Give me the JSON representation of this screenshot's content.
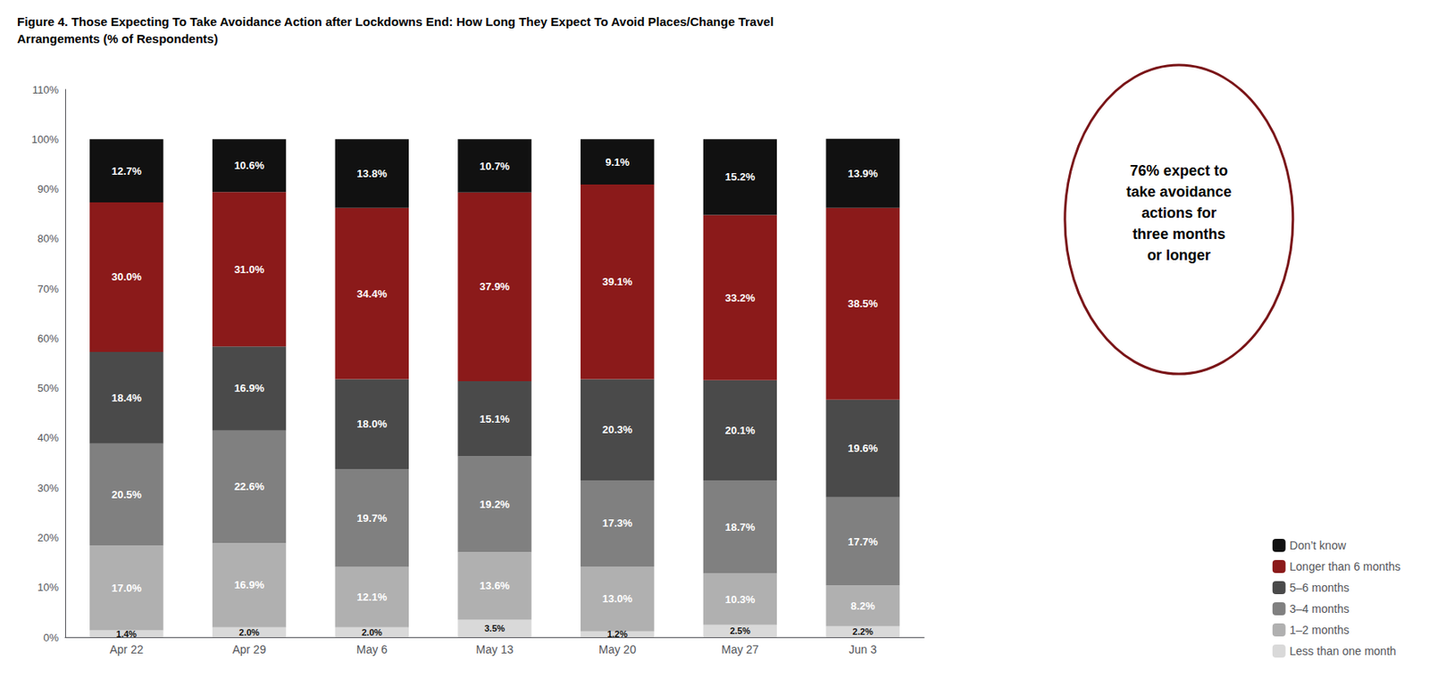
{
  "chart_data": {
    "type": "bar",
    "stacked": true,
    "title": "Figure 4. Those Expecting To Take Avoidance Action after Lockdowns End: How Long They Expect To Avoid Places/Change Travel",
    "subtitle": "Arrangements (% of Respondents)",
    "categories": [
      "Apr 22",
      "Apr 29",
      "May 6",
      "May 13",
      "May 20",
      "May 27",
      "Jun 3"
    ],
    "series": [
      {
        "name": "Less than one month",
        "color": "#d9d9d9",
        "values": [
          1.4,
          2.0,
          2.0,
          3.5,
          1.2,
          2.5,
          2.2
        ],
        "value_labels": [
          "1.4%",
          "2.0%",
          "2.0%",
          "3.5%",
          "1.2%",
          "2.5%",
          "2.2%"
        ]
      },
      {
        "name": "1–2 months",
        "color": "#b0b0b0",
        "values": [
          17.0,
          16.9,
          12.1,
          13.6,
          13.0,
          10.3,
          8.2
        ],
        "value_labels": [
          "17.0%",
          "16.9%",
          "12.1%",
          "13.6%",
          "13.0%",
          "10.3%",
          "8.2%"
        ]
      },
      {
        "name": "3–4 months",
        "color": "#808080",
        "values": [
          20.5,
          22.6,
          19.7,
          19.2,
          17.3,
          18.7,
          17.7
        ],
        "value_labels": [
          "20.5%",
          "22.6%",
          "19.7%",
          "19.2%",
          "17.3%",
          "18.7%",
          "17.7%"
        ]
      },
      {
        "name": "5–6 months",
        "color": "#4a4a4a",
        "values": [
          18.4,
          16.9,
          18.0,
          15.1,
          20.3,
          20.1,
          19.6
        ],
        "value_labels": [
          "18.4%",
          "16.9%",
          "18.0%",
          "15.1%",
          "20.3%",
          "20.1%",
          "19.6%"
        ]
      },
      {
        "name": "Longer than 6 months",
        "color": "#8b1a1a",
        "values": [
          30.0,
          31.0,
          34.4,
          37.9,
          39.1,
          33.2,
          38.5
        ],
        "value_labels": [
          "30.0%",
          "31.0%",
          "34.4%",
          "37.9%",
          "39.1%",
          "33.2%",
          "38.5%"
        ]
      },
      {
        "name": "Don’t know",
        "color": "#111111",
        "values": [
          12.7,
          10.6,
          13.8,
          10.7,
          9.1,
          15.2,
          13.9
        ],
        "value_labels": [
          "12.7%",
          "10.6%",
          "13.8%",
          "10.7%",
          "9.1%",
          "15.2%",
          "13.9%"
        ]
      }
    ],
    "data_labels": true,
    "ylim": [
      0,
      110
    ],
    "yticks": [
      {
        "value": 0,
        "label": "0%"
      },
      {
        "value": 10,
        "label": "10%"
      },
      {
        "value": 20,
        "label": "20%"
      },
      {
        "value": 30,
        "label": "30%"
      },
      {
        "value": 40,
        "label": "40%"
      },
      {
        "value": 50,
        "label": "50%"
      },
      {
        "value": 60,
        "label": "60%"
      },
      {
        "value": 70,
        "label": "70%"
      },
      {
        "value": 80,
        "label": "80%"
      },
      {
        "value": 90,
        "label": "90%"
      },
      {
        "value": 100,
        "label": "100%"
      },
      {
        "value": 110,
        "label": "110%"
      }
    ],
    "grid": false,
    "legend": "lower right",
    "annotations": [
      {
        "text": "76% expect to\ntake avoidance\nactions for\nthree months\nor longer",
        "color": "#7a1518"
      }
    ]
  }
}
